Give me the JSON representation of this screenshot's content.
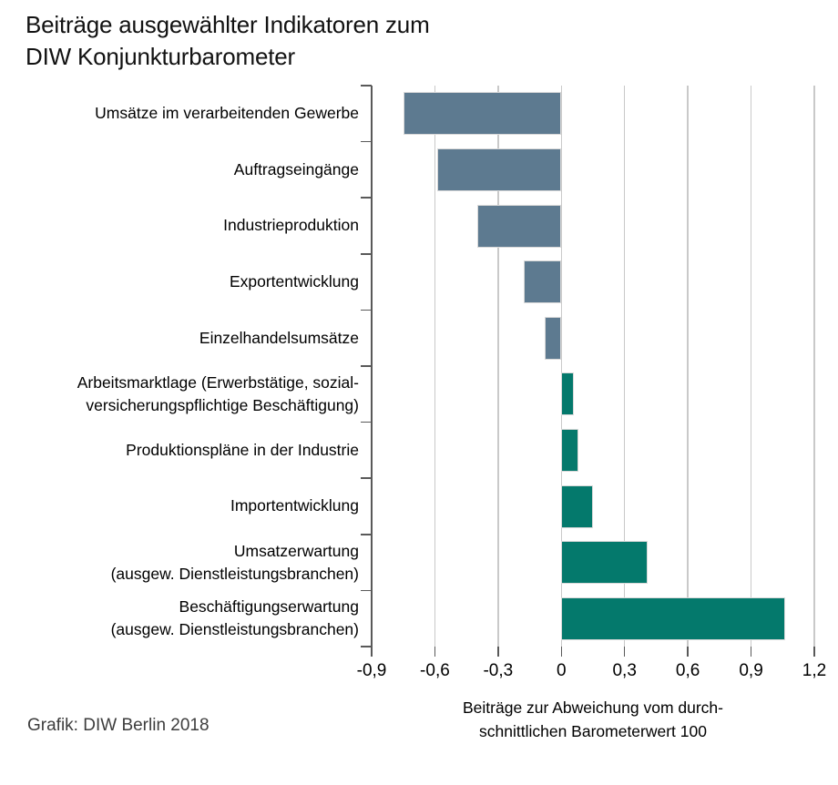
{
  "footer": {
    "credit": "Grafik: DIW Berlin 2018"
  },
  "chart_data": {
    "type": "bar",
    "orientation": "horizontal",
    "title": "Beiträge ausgewählter Indikatoren zum\nDIW Konjunkturbarometer",
    "xlabel": "Beiträge zur Abweichung vom durch-\nschnittlichen Barometerwert 100",
    "categories": [
      "Umsätze im verarbeitenden Gewerbe",
      "Auftragseingänge",
      "Industrieproduktion",
      "Exportentwicklung",
      "Einzelhandelsumsätze",
      "Arbeitsmarktlage (Erwerbstätige, sozial-\nversicherungspflichtige Beschäftigung)",
      "Produktionspläne in der Industrie",
      "Importentwicklung",
      "Umsatzerwartung\n(ausgew. Dienstleistungsbranchen)",
      "Beschäftigungserwartung\n(ausgew. Dienstleistungsbranchen)"
    ],
    "values": [
      -0.75,
      -0.59,
      -0.4,
      -0.18,
      -0.08,
      0.06,
      0.08,
      0.15,
      0.41,
      1.06
    ],
    "xlim": [
      -0.9,
      1.2
    ],
    "xticks": [
      -0.9,
      -0.6,
      -0.3,
      0,
      0.3,
      0.6,
      0.9,
      1.2
    ],
    "xtick_labels": [
      "-0,9",
      "-0,6",
      "-0,3",
      "0",
      "0,3",
      "0,6",
      "0,9",
      "1,2"
    ],
    "grid": true,
    "legend": false,
    "colors": {
      "negative_bar": "#5d7a90",
      "positive_bar": "#04796c",
      "gridline": "#c9c9c9",
      "axis": "#595959",
      "bar_border": "#d9d9d9"
    }
  }
}
